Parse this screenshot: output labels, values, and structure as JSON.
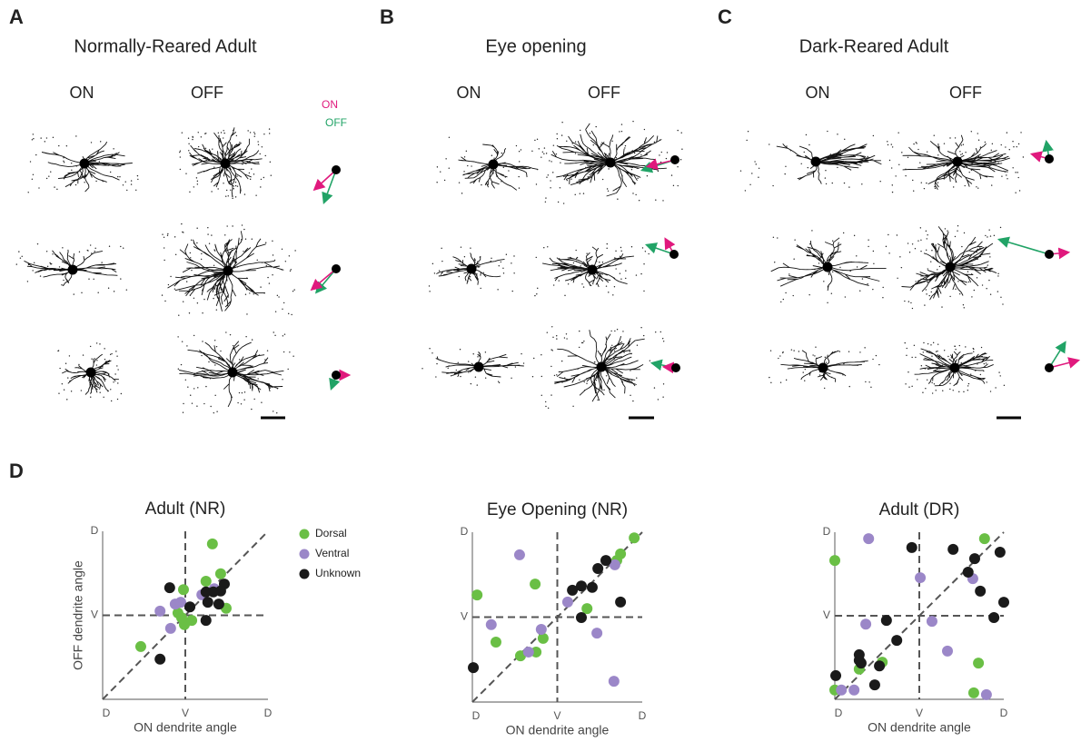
{
  "panels": [
    {
      "label": "A",
      "title": "Normally-Reared Adult",
      "on": "ON",
      "off": "OFF"
    },
    {
      "label": "B",
      "title": "Eye opening",
      "on": "ON",
      "off": "OFF"
    },
    {
      "label": "C",
      "title": "Dark-Reared Adult",
      "on": "ON",
      "off": "OFF"
    }
  ],
  "arrow_legend": {
    "on": "ON",
    "off": "OFF"
  },
  "panel_d_label": "D",
  "chart_data": [
    {
      "type": "scatter",
      "title": "Adult (NR)",
      "x_label": "ON dendrite angle",
      "y_label": "OFF dendrite angle",
      "xlim": [
        0,
        360
      ],
      "ylim": [
        0,
        360
      ],
      "xticks": [
        {
          "value": 0,
          "label": "D"
        },
        {
          "value": 180,
          "label": "V"
        },
        {
          "value": 360,
          "label": "D"
        }
      ],
      "yticks": [
        {
          "value": 180,
          "label": "V"
        },
        {
          "value": 360,
          "label": "D"
        }
      ],
      "series": [
        {
          "name": "Dorsal",
          "color": "#6abf45",
          "x": [
            239,
            257,
            225,
            176,
            164,
            178,
            194,
            269,
            83,
            172
          ],
          "values": [
            333,
            269,
            253,
            235,
            185,
            160,
            169,
            195,
            113,
            175
          ]
        },
        {
          "name": "Ventral",
          "color": "#9b87c8",
          "x": [
            125,
            148,
            158,
            170,
            216,
            243
          ],
          "values": [
            189,
            152,
            204,
            208,
            224,
            237
          ]
        },
        {
          "name": "Unknown",
          "color": "#1a1a1a",
          "x": [
            146,
            125,
            190,
            225,
            241,
            265,
            257,
            229,
            225,
            253
          ],
          "values": [
            239,
            86,
            198,
            230,
            230,
            247,
            232,
            208,
            169,
            204
          ]
        }
      ]
    },
    {
      "type": "scatter",
      "title": "Eye Opening (NR)",
      "x_label": "ON dendrite angle",
      "xlim": [
        0,
        360
      ],
      "ylim": [
        0,
        360
      ],
      "xticks": [
        {
          "value": 0,
          "label": "D"
        },
        {
          "value": 180,
          "label": "V"
        },
        {
          "value": 360,
          "label": "D"
        }
      ],
      "yticks": [
        {
          "value": 180,
          "label": "V"
        },
        {
          "value": 360,
          "label": "D"
        }
      ],
      "series": [
        {
          "color": "#6abf45",
          "x": [
            343,
            314,
            306,
            10,
            133,
            50,
            150,
            135,
            102,
            243
          ],
          "values": [
            348,
            314,
            300,
            227,
            250,
            127,
            135,
            106,
            98,
            198
          ]
        },
        {
          "color": "#9b87c8",
          "x": [
            100,
            302,
            40,
            202,
            146,
            119,
            264,
            300
          ],
          "values": [
            312,
            291,
            164,
            212,
            154,
            106,
            146,
            44
          ]
        },
        {
          "color": "#1a1a1a",
          "x": [
            2,
            212,
            231,
            254,
            266,
            283,
            314,
            231
          ],
          "values": [
            73,
            237,
            246,
            243,
            283,
            300,
            212,
            179
          ]
        }
      ]
    },
    {
      "type": "scatter",
      "title": "Adult (DR)",
      "x_label": "ON dendrite angle",
      "xlim": [
        0,
        360
      ],
      "ylim": [
        0,
        360
      ],
      "xticks": [
        {
          "value": 0,
          "label": "D"
        },
        {
          "value": 180,
          "label": "V"
        },
        {
          "value": 360,
          "label": "D"
        }
      ],
      "yticks": [
        {
          "value": 180,
          "label": "V"
        },
        {
          "value": 360,
          "label": "D"
        }
      ],
      "series": [
        {
          "color": "#6abf45",
          "x": [
            319,
            0,
            101,
            52,
            306,
            296,
            0
          ],
          "values": [
            346,
            299,
            80,
            65,
            78,
            14,
            20
          ]
        },
        {
          "color": "#9b87c8",
          "x": [
            72,
            182,
            294,
            66,
            207,
            240,
            323,
            41,
            14
          ],
          "values": [
            346,
            262,
            260,
            162,
            168,
            104,
            10,
            20,
            20
          ]
        },
        {
          "color": "#1a1a1a",
          "x": [
            164,
            252,
            298,
            352,
            284,
            310,
            360,
            339,
            110,
            132,
            95,
            52,
            52,
            56,
            85,
            2
          ],
          "values": [
            327,
            323,
            303,
            317,
            274,
            233,
            209,
            176,
            170,
            127,
            72,
            96,
            84,
            78,
            31,
            51
          ]
        }
      ]
    }
  ]
}
